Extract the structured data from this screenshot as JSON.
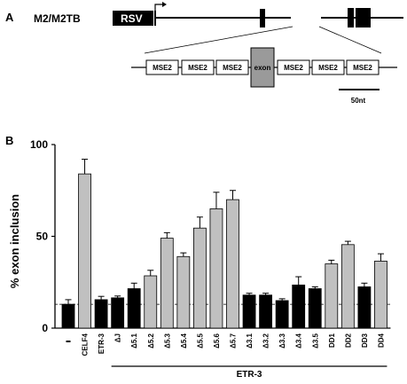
{
  "panel_a": {
    "label": "A",
    "construct_name": "M2/M2TB",
    "promoter_label": "RSV",
    "mse_label": "MSE2",
    "exon_label": "exon",
    "scale_label": "50nt"
  },
  "panel_b": {
    "label": "B"
  },
  "chart_data": {
    "type": "bar",
    "ylabel": "% exon inclusion",
    "ylim": [
      0,
      100
    ],
    "yticks": [
      "0",
      "50",
      "100"
    ],
    "group_label": "ETR-3",
    "baseline": 13,
    "categories": [
      "-",
      "CELF4",
      "ETR-3",
      "ΔJ",
      "Δ5.1",
      "Δ5.2",
      "Δ5.3",
      "Δ5.4",
      "Δ5.5",
      "Δ5.6",
      "Δ5.7",
      "Δ3.1",
      "Δ3.2",
      "Δ3.3",
      "Δ3.4",
      "Δ3.5",
      "DD1",
      "DD2",
      "DD3",
      "DD4"
    ],
    "values": [
      13,
      84,
      15.5,
      16.5,
      21.5,
      28.5,
      49,
      39,
      54.5,
      65,
      70,
      18,
      18,
      15,
      23.5,
      21.5,
      35,
      45.5,
      22.5,
      36.5
    ],
    "errors": [
      2.5,
      8,
      1.8,
      1,
      3,
      3,
      3,
      2,
      6,
      9,
      5,
      1,
      1,
      1,
      4.5,
      1,
      2,
      1.8,
      2,
      4
    ],
    "colors": [
      "#000000",
      "#c0c0c0",
      "#000000",
      "#000000",
      "#000000",
      "#c0c0c0",
      "#c0c0c0",
      "#c0c0c0",
      "#c0c0c0",
      "#c0c0c0",
      "#c0c0c0",
      "#000000",
      "#000000",
      "#000000",
      "#000000",
      "#000000",
      "#c0c0c0",
      "#c0c0c0",
      "#000000",
      "#c0c0c0"
    ]
  }
}
